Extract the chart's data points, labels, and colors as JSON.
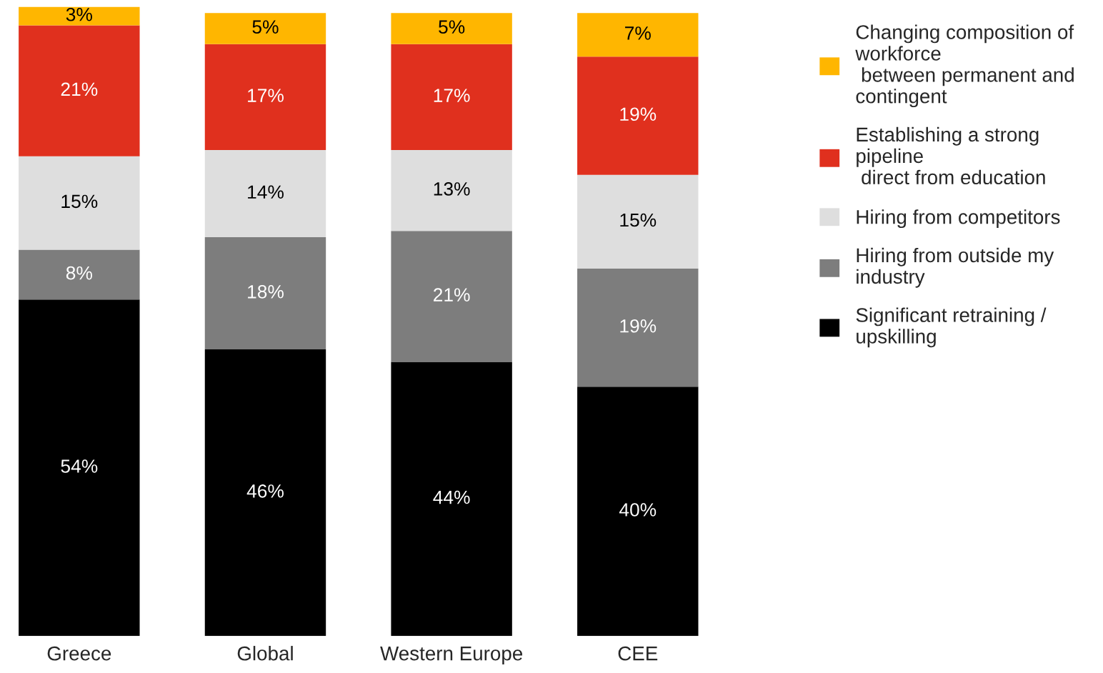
{
  "chart_data": {
    "type": "bar",
    "stacked": true,
    "tick_labels": "x",
    "legend": "top right",
    "grid": false,
    "categories": [
      "Greece",
      "Global",
      "Western Europe",
      "CEE"
    ],
    "series": [
      {
        "name": "Significant retraining /\nupskilling",
        "color": "#000000",
        "values": [
          54,
          46,
          44,
          40
        ],
        "value_labels": [
          "54%",
          "46%",
          "44%",
          "40%"
        ]
      },
      {
        "name": "Hiring from outside my\nindustry",
        "color": "#7d7d7d",
        "values": [
          8,
          18,
          21,
          19
        ],
        "value_labels": [
          "8%",
          "18%",
          "21%",
          "19%"
        ]
      },
      {
        "name": "Hiring from competitors",
        "color": "#dedede",
        "values": [
          15,
          14,
          13,
          15
        ],
        "value_labels": [
          "15%",
          "14%",
          "13%",
          "15%"
        ]
      },
      {
        "name": "Establishing a strong\npipeline\n direct from education",
        "color": "#e0301e",
        "values": [
          21,
          17,
          17,
          19
        ],
        "value_labels": [
          "21%",
          "17%",
          "17%",
          "19%"
        ]
      },
      {
        "name": "Changing composition of\nworkforce\n between permanent and\ncontingent",
        "color": "#ffb600",
        "values": [
          3,
          5,
          5,
          7
        ],
        "value_labels": [
          "3%",
          "5%",
          "5%",
          "7%"
        ]
      }
    ]
  }
}
